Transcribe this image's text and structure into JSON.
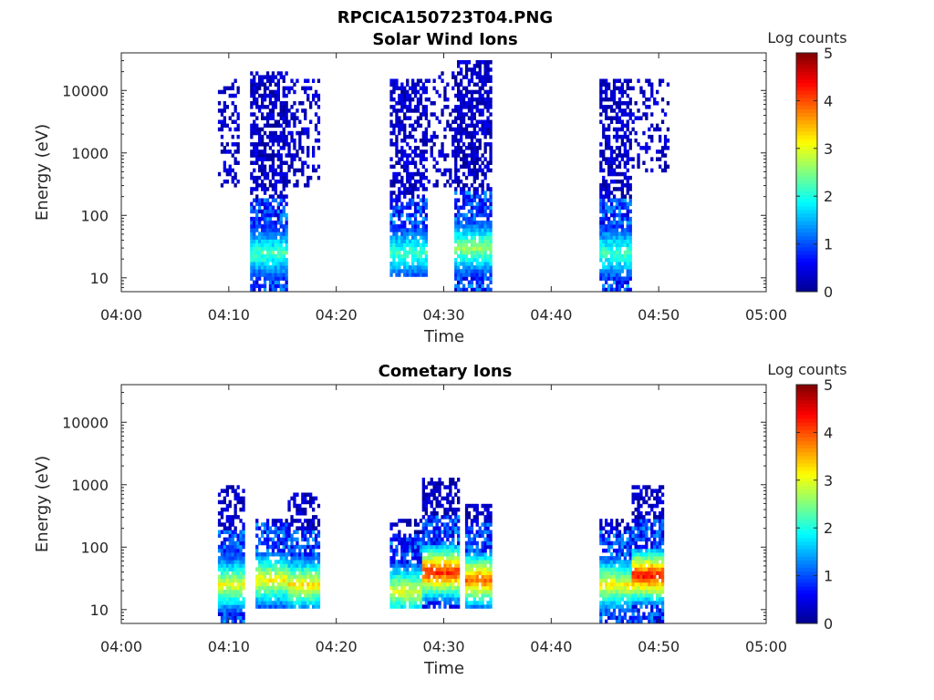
{
  "figure_title": "RPCICA150723T04.PNG",
  "colormap": [
    "#00008f",
    "#0000ff",
    "#0080ff",
    "#00ffff",
    "#80ff80",
    "#ffff00",
    "#ff8000",
    "#ff0000",
    "#800000"
  ],
  "chart_data": [
    {
      "type": "heatmap",
      "title": "Solar Wind Ions",
      "xlabel": "Time",
      "ylabel": "Energy (eV)",
      "x_ticks": [
        "04:00",
        "04:10",
        "04:20",
        "04:30",
        "04:40",
        "04:50",
        "05:00"
      ],
      "x_range_minutes": [
        0,
        60
      ],
      "y_scale": "log",
      "y_ticks": [
        "10",
        "100",
        "1000",
        "10000"
      ],
      "y_tick_values": [
        10,
        100,
        1000,
        10000
      ],
      "y_range": [
        6,
        40000
      ],
      "colorbar": {
        "label": "Log counts",
        "range": [
          0,
          5
        ],
        "ticks": [
          "0",
          "1",
          "2",
          "3",
          "4",
          "5"
        ]
      },
      "bursts": [
        {
          "t_start": 9.0,
          "t_end": 11.0,
          "e_min": 300,
          "e_max": 15000,
          "core_e": null,
          "core_level": 0,
          "density": 0.35
        },
        {
          "t_start": 12.0,
          "t_end": 15.5,
          "e_min": 6,
          "e_max": 20000,
          "core_e": 25,
          "core_level": 2.0,
          "density": 0.6
        },
        {
          "t_start": 15.5,
          "t_end": 18.5,
          "e_min": 300,
          "e_max": 15000,
          "core_e": null,
          "core_level": 0,
          "density": 0.35
        },
        {
          "t_start": 25.0,
          "t_end": 28.5,
          "e_min": 10,
          "e_max": 15000,
          "core_e": 25,
          "core_level": 2.0,
          "density": 0.6
        },
        {
          "t_start": 28.5,
          "t_end": 31.0,
          "e_min": 300,
          "e_max": 20000,
          "core_e": null,
          "core_level": 0,
          "density": 0.3
        },
        {
          "t_start": 31.0,
          "t_end": 34.5,
          "e_min": 6,
          "e_max": 30000,
          "core_e": 30,
          "core_level": 2.4,
          "density": 0.65
        },
        {
          "t_start": 44.5,
          "t_end": 47.5,
          "e_min": 6,
          "e_max": 15000,
          "core_e": 25,
          "core_level": 2.0,
          "density": 0.6
        },
        {
          "t_start": 47.5,
          "t_end": 51.0,
          "e_min": 500,
          "e_max": 15000,
          "core_e": null,
          "core_level": 0,
          "density": 0.3
        }
      ]
    },
    {
      "type": "heatmap",
      "title": "Cometary Ions",
      "xlabel": "Time",
      "ylabel": "Energy (eV)",
      "x_ticks": [
        "04:00",
        "04:10",
        "04:20",
        "04:30",
        "04:40",
        "04:50",
        "05:00"
      ],
      "x_range_minutes": [
        0,
        60
      ],
      "y_scale": "log",
      "y_ticks": [
        "10",
        "100",
        "1000",
        "10000"
      ],
      "y_tick_values": [
        10,
        100,
        1000,
        10000
      ],
      "y_range": [
        6,
        40000
      ],
      "colorbar": {
        "label": "Log counts",
        "range": [
          0,
          5
        ],
        "ticks": [
          "0",
          "1",
          "2",
          "3",
          "4",
          "5"
        ]
      },
      "bursts": [
        {
          "t_start": 9.0,
          "t_end": 11.5,
          "e_min": 6,
          "e_max": 1000,
          "core_e": 25,
          "core_level": 2.8,
          "density": 0.55
        },
        {
          "t_start": 12.5,
          "t_end": 15.5,
          "e_min": 10,
          "e_max": 300,
          "core_e": 30,
          "core_level": 2.9,
          "density": 0.6
        },
        {
          "t_start": 15.5,
          "t_end": 18.5,
          "e_min": 10,
          "e_max": 700,
          "core_e": 25,
          "core_level": 3.0,
          "density": 0.55
        },
        {
          "t_start": 25.0,
          "t_end": 28.0,
          "e_min": 10,
          "e_max": 300,
          "core_e": 20,
          "core_level": 2.8,
          "density": 0.5
        },
        {
          "t_start": 28.0,
          "t_end": 31.5,
          "e_min": 10,
          "e_max": 1200,
          "core_e": 40,
          "core_level": 4.0,
          "density": 0.55
        },
        {
          "t_start": 32.0,
          "t_end": 34.5,
          "e_min": 10,
          "e_max": 500,
          "core_e": 30,
          "core_level": 3.7,
          "density": 0.5
        },
        {
          "t_start": 44.5,
          "t_end": 47.5,
          "e_min": 6,
          "e_max": 300,
          "core_e": 25,
          "core_level": 2.9,
          "density": 0.55
        },
        {
          "t_start": 47.5,
          "t_end": 50.5,
          "e_min": 6,
          "e_max": 1000,
          "core_e": 35,
          "core_level": 4.1,
          "density": 0.55
        }
      ]
    }
  ]
}
